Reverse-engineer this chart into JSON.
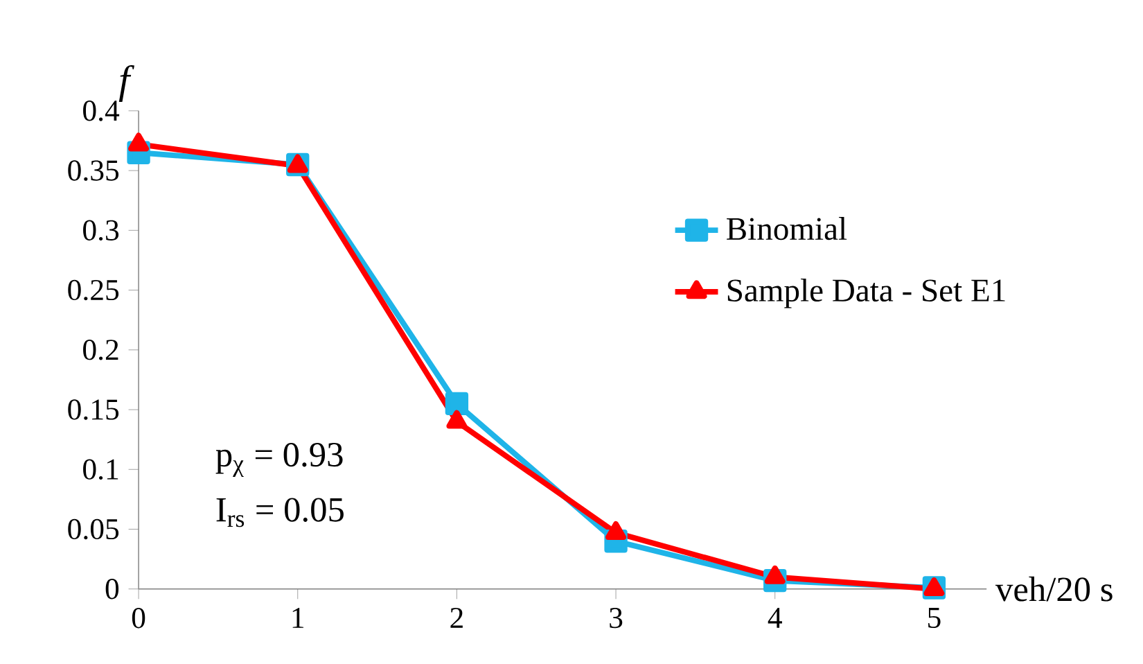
{
  "chart_data": {
    "type": "line",
    "xlabel": "veh/20 s",
    "ylabel": "f",
    "x": [
      0,
      1,
      2,
      3,
      4,
      5
    ],
    "xlim": [
      0,
      5.33
    ],
    "xticks": [
      0,
      1,
      2,
      3,
      4,
      5
    ],
    "ylim": [
      0,
      0.4
    ],
    "yticks": [
      0,
      0.05,
      0.1,
      0.15,
      0.2,
      0.25,
      0.3,
      0.35,
      0.4
    ],
    "legend": "right",
    "grid": false,
    "series": [
      {
        "name": "Binomial",
        "color": "#1fb4e8",
        "marker": "square",
        "values": [
          0.365,
          0.355,
          0.155,
          0.04,
          0.007,
          0.001
        ]
      },
      {
        "name": "Sample Data - Set E1",
        "color": "#ff0000",
        "marker": "triangle",
        "values": [
          0.372,
          0.354,
          0.14,
          0.047,
          0.01,
          0.0
        ]
      }
    ],
    "annotations": [
      "p$_{χ}$ = 0.93",
      "I$_{rs}$ = 0.05"
    ]
  }
}
